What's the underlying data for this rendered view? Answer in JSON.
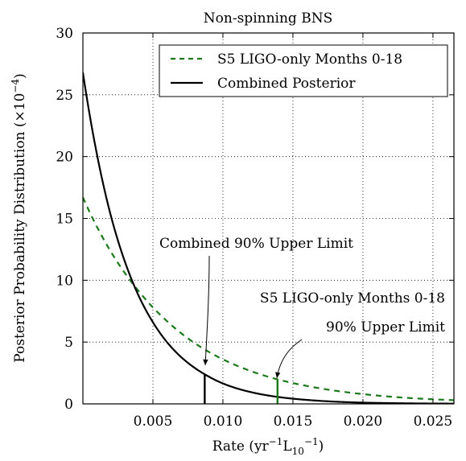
{
  "chart_data": {
    "type": "line",
    "title": "Non-spinning BNS",
    "xlabel": "Rate (yr⁻¹L₁₀⁻¹)",
    "ylabel": "Posterior Probability Distribution (×10⁻⁴)",
    "xlim": [
      0,
      0.0265
    ],
    "ylim": [
      0,
      30
    ],
    "xticks": [
      "0.005",
      "0.010",
      "0.015",
      "0.020",
      "0.025"
    ],
    "xtick_values": [
      0.005,
      0.01,
      0.015,
      0.02,
      0.025
    ],
    "yticks": [
      "0",
      "5",
      "10",
      "15",
      "20",
      "25",
      "30"
    ],
    "ytick_values": [
      0,
      5,
      10,
      15,
      20,
      25,
      30
    ],
    "grid": true,
    "legend_position": "top-right",
    "series": [
      {
        "name": "S5 LIGO-only Months 0-18",
        "style": "dashed",
        "color": "#1a7a1a",
        "x": [
          0,
          0.002,
          0.004,
          0.005,
          0.006,
          0.008,
          0.01,
          0.012,
          0.014,
          0.016,
          0.018,
          0.02,
          0.022,
          0.024,
          0.0265
        ],
        "y": [
          16.7,
          12.3,
          9.1,
          7.8,
          6.7,
          4.9,
          3.6,
          2.65,
          1.95,
          1.45,
          1.07,
          0.79,
          0.58,
          0.43,
          0.3
        ]
      },
      {
        "name": "Combined Posterior",
        "style": "solid",
        "color": "#000000",
        "x": [
          0,
          0.001,
          0.002,
          0.003,
          0.004,
          0.005,
          0.006,
          0.007,
          0.008,
          0.009,
          0.01,
          0.012,
          0.014,
          0.016,
          0.018,
          0.02,
          0.022,
          0.024,
          0.0265
        ],
        "y": [
          26.8,
          20.2,
          15.2,
          11.5,
          8.7,
          6.6,
          5.0,
          3.8,
          2.9,
          2.2,
          1.65,
          0.95,
          0.55,
          0.32,
          0.18,
          0.1,
          0.06,
          0.035,
          0.02
        ]
      }
    ],
    "upper_limits": [
      {
        "series": "Combined Posterior",
        "x": 0.0087,
        "color": "#000000"
      },
      {
        "series": "S5 LIGO-only Months 0-18",
        "x": 0.0139,
        "color": "#1a7a1a"
      }
    ],
    "annotations": [
      {
        "text": "Combined 90% Upper Limit",
        "points_to_x": 0.0087
      },
      {
        "text": "S5 LIGO-only Months 0-18",
        "points_to_x": 0.0139
      },
      {
        "text": "90% Upper Limit",
        "points_to_x": 0.0139
      }
    ]
  }
}
